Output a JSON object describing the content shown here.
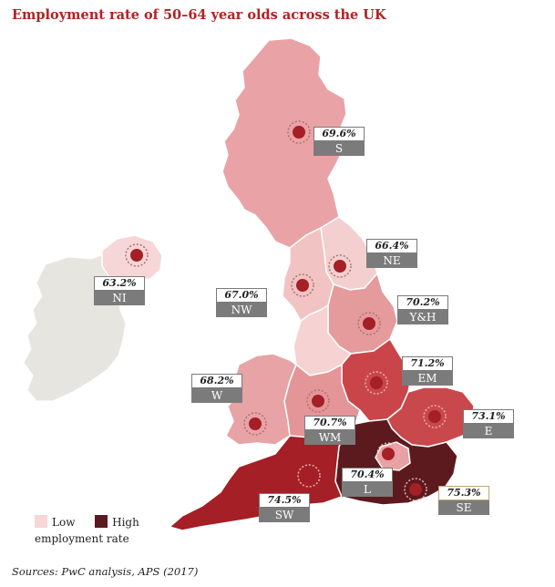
{
  "title": "Employment rate of 50–64 year olds across the UK",
  "regions": [
    {
      "code": "S",
      "value": "69.6%",
      "color": "#e9a3a6"
    },
    {
      "code": "NE",
      "value": "66.4%",
      "color": "#f4cfcf"
    },
    {
      "code": "NI",
      "value": "63.2%",
      "color": "#f6d6d6"
    },
    {
      "code": "NW",
      "value": "67.0%",
      "color": "#f1c3c3"
    },
    {
      "code": "Y&H",
      "value": "70.2%",
      "color": "#e59a9c"
    },
    {
      "code": "EM",
      "value": "71.2%",
      "color": "#c9454a"
    },
    {
      "code": "W",
      "value": "68.2%",
      "color": "#e7a3a6"
    },
    {
      "code": "WM",
      "value": "70.7%",
      "color": "#e49597"
    },
    {
      "code": "E",
      "value": "73.1%",
      "color": "#c9484c"
    },
    {
      "code": "L",
      "value": "70.4%",
      "color": "#e9a0a3"
    },
    {
      "code": "SE",
      "value": "75.3%",
      "color": "#5c1a1e"
    },
    {
      "code": "SW",
      "value": "74.5%",
      "color": "#a51f26"
    }
  ],
  "legend": {
    "low_label": "Low",
    "high_label": "High",
    "caption": "employment rate",
    "low_color": "#f6d6d6",
    "high_color": "#5c1a1e"
  },
  "source": "Sources: PwC analysis, APS (2017)"
}
